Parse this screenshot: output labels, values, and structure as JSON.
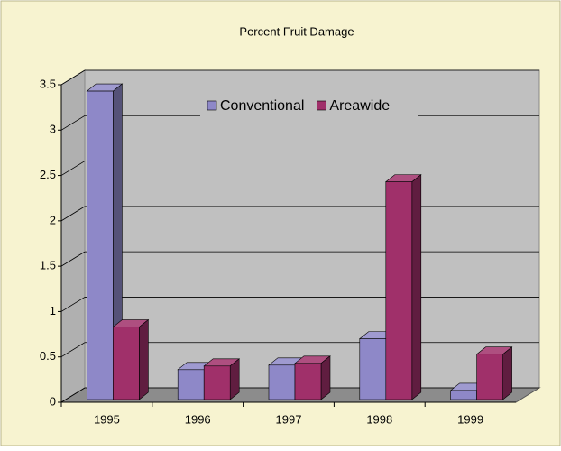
{
  "chart_data": {
    "type": "bar",
    "title": "Percent Fruit Damage",
    "categories": [
      "1995",
      "1996",
      "1997",
      "1998",
      "1999"
    ],
    "series": [
      {
        "name": "Conventional",
        "color": "#8e88c8",
        "values": [
          3.4,
          0.33,
          0.38,
          0.67,
          0.1
        ]
      },
      {
        "name": "Areawide",
        "color": "#a0306a",
        "values": [
          0.8,
          0.37,
          0.4,
          2.4,
          0.5
        ]
      }
    ],
    "ylim": [
      0,
      3.5
    ],
    "yticks": [
      0,
      0.5,
      1,
      1.5,
      2,
      2.5,
      3,
      3.5
    ],
    "grid": true,
    "legend": "top"
  }
}
